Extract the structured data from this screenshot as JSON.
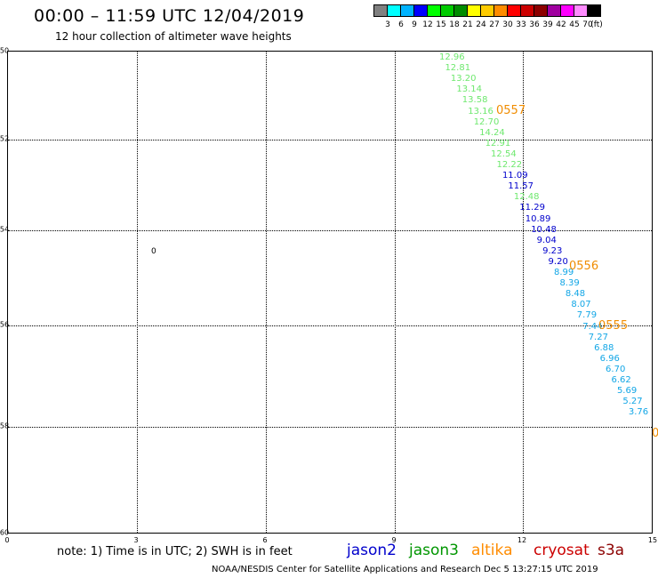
{
  "header": {
    "title": "00:00 – 11:59 UTC 12/04/2019",
    "subtitle": "12 hour collection of altimeter wave heights"
  },
  "legend": {
    "colors": [
      "#808080",
      "#00ffff",
      "#00b4ff",
      "#0000ff",
      "#00ff00",
      "#00cc00",
      "#008c00",
      "#ffff00",
      "#ffcc00",
      "#ff8c00",
      "#ff0000",
      "#cc0000",
      "#8c0000",
      "#a000a0",
      "#ff00ff",
      "#ff8cff",
      "#000000"
    ],
    "labels": [
      "3",
      "6",
      "9",
      "12",
      "15",
      "18",
      "21",
      "24",
      "27",
      "30",
      "33",
      "36",
      "39",
      "42",
      "45",
      "70",
      "(ft)"
    ]
  },
  "axes": {
    "y_labels": [
      "-50",
      "-52",
      "-54",
      "-56",
      "-58",
      "-60"
    ],
    "x_labels": [
      "0",
      "3",
      "6",
      "9",
      "12",
      "15"
    ]
  },
  "map": {
    "marker_label": "0",
    "pass_labels": [
      "0557",
      "0556",
      "0555",
      "0"
    ],
    "wave_heights": [
      {
        "value": "12.96",
        "color": "#6ee86e"
      },
      {
        "value": "12.81",
        "color": "#6ee86e"
      },
      {
        "value": "13.20",
        "color": "#6ee86e"
      },
      {
        "value": "13.14",
        "color": "#6ee86e"
      },
      {
        "value": "13.58",
        "color": "#6ee86e"
      },
      {
        "value": "13.16",
        "color": "#6ee86e"
      },
      {
        "value": "12.70",
        "color": "#6ee86e"
      },
      {
        "value": "14.24",
        "color": "#6ee86e"
      },
      {
        "value": "12.91",
        "color": "#6ee86e"
      },
      {
        "value": "12.54",
        "color": "#6ee86e"
      },
      {
        "value": "12.22",
        "color": "#6ee86e"
      },
      {
        "value": "11.09",
        "color": "#0000cc"
      },
      {
        "value": "11.57",
        "color": "#0000cc"
      },
      {
        "value": "12.48",
        "color": "#6ee86e"
      },
      {
        "value": "11.29",
        "color": "#0000cc"
      },
      {
        "value": "10.89",
        "color": "#0000cc"
      },
      {
        "value": "10.48",
        "color": "#0000cc"
      },
      {
        "value": "9.04",
        "color": "#0000cc"
      },
      {
        "value": "9.23",
        "color": "#0000cc"
      },
      {
        "value": "9.20",
        "color": "#0000cc"
      },
      {
        "value": "8.99",
        "color": "#12a6e6"
      },
      {
        "value": "8.39",
        "color": "#12a6e6"
      },
      {
        "value": "8.48",
        "color": "#12a6e6"
      },
      {
        "value": "8.07",
        "color": "#12a6e6"
      },
      {
        "value": "7.79",
        "color": "#12a6e6"
      },
      {
        "value": "7.44",
        "color": "#12a6e6"
      },
      {
        "value": "7.27",
        "color": "#12a6e6"
      },
      {
        "value": "6.88",
        "color": "#12a6e6"
      },
      {
        "value": "6.96",
        "color": "#12a6e6"
      },
      {
        "value": "6.70",
        "color": "#12a6e6"
      },
      {
        "value": "6.62",
        "color": "#12a6e6"
      },
      {
        "value": "5.69",
        "color": "#12a6e6"
      },
      {
        "value": "5.27",
        "color": "#12a6e6"
      },
      {
        "value": "3.76",
        "color": "#12a6e6"
      }
    ]
  },
  "footer": {
    "note": "note:  1) Time is in UTC;  2) SWH is in feet",
    "satellites": [
      {
        "name": "jason2",
        "color": "#0000cc"
      },
      {
        "name": "jason3",
        "color": "#009600"
      },
      {
        "name": "altika",
        "color": "#ff8c00"
      },
      {
        "name": "cryosat",
        "color": "#cc0000"
      },
      {
        "name": "s3a",
        "color": "#8c0000"
      }
    ],
    "credit": "NOAA/NESDIS Center for Satellite Applications and Research    Dec  5 13:27:15 UTC 2019"
  }
}
